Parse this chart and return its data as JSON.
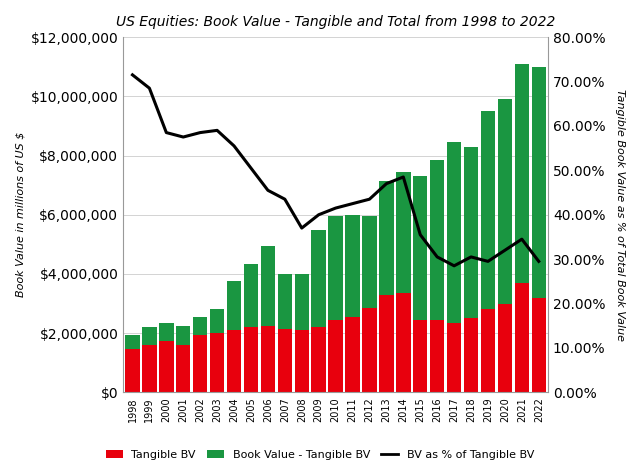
{
  "title": "US Equities: Book Value - Tangible and Total from 1998 to 2022",
  "years": [
    1998,
    1999,
    2000,
    2001,
    2002,
    2003,
    2004,
    2005,
    2006,
    2007,
    2008,
    2009,
    2010,
    2011,
    2012,
    2013,
    2014,
    2015,
    2016,
    2017,
    2018,
    2019,
    2020,
    2021,
    2022
  ],
  "tangible_bv": [
    1450000,
    1600000,
    1750000,
    1600000,
    1950000,
    2000000,
    2100000,
    2200000,
    2250000,
    2150000,
    2100000,
    2200000,
    2450000,
    2550000,
    2850000,
    3300000,
    3350000,
    2450000,
    2450000,
    2350000,
    2500000,
    2800000,
    3000000,
    3700000,
    3200000
  ],
  "green_bv": [
    500000,
    600000,
    600000,
    650000,
    600000,
    800000,
    1650000,
    2150000,
    2700000,
    1850000,
    1900000,
    3300000,
    3500000,
    3450000,
    3100000,
    3850000,
    4100000,
    4850000,
    5400000,
    6100000,
    5800000,
    6700000,
    6900000,
    7400000,
    7800000
  ],
  "pct_line": [
    0.715,
    0.685,
    0.585,
    0.575,
    0.585,
    0.59,
    0.555,
    0.505,
    0.455,
    0.435,
    0.37,
    0.4,
    0.415,
    0.425,
    0.435,
    0.47,
    0.485,
    0.355,
    0.305,
    0.285,
    0.305,
    0.295,
    0.32,
    0.345,
    0.295
  ],
  "ylabel_left": "Book Value in millions of US $",
  "ylabel_right": "Tangible Book Value as % of Total Book Value",
  "ylim_left": [
    0,
    12000000
  ],
  "ylim_right": [
    0,
    0.8
  ],
  "yticks_left": [
    0,
    2000000,
    4000000,
    6000000,
    8000000,
    10000000,
    12000000
  ],
  "yticks_right": [
    0.0,
    0.1,
    0.2,
    0.3,
    0.4,
    0.5,
    0.6,
    0.7,
    0.8
  ],
  "legend_labels": [
    "Tangible BV",
    "Book Value - Tangible BV",
    "BV as % of Tangible BV"
  ],
  "bar_red": "#e8000d",
  "bar_green": "#1a9641",
  "line_color": "#000000",
  "bg_color": "#ffffff",
  "grid_color": "#d3d3d3",
  "title_style": "italic",
  "title_fontsize": 10
}
